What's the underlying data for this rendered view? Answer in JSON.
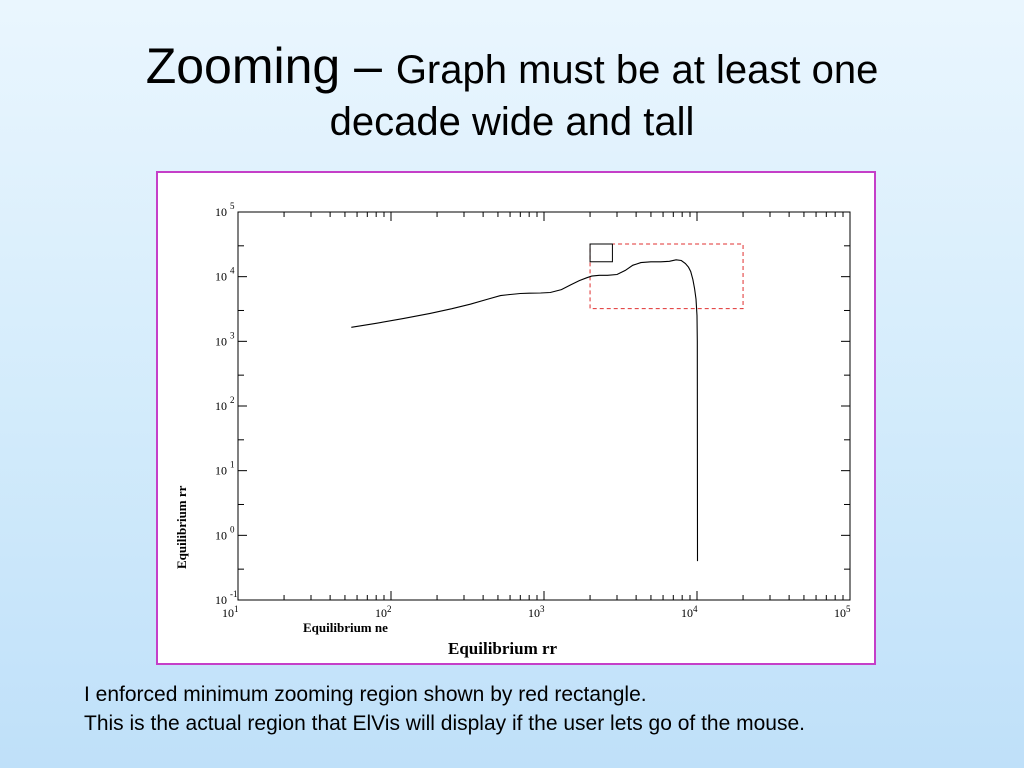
{
  "slide": {
    "title_main": "Zooming",
    "title_dash": " – ",
    "title_sub": "Graph must be at least one",
    "title_line2": "decade wide and tall"
  },
  "caption": {
    "line1": "I enforced minimum zooming region shown by red rectangle.",
    "line2": "This is the actual region that ElVis will display if the user lets go of the mouse."
  },
  "chart_data": {
    "type": "line",
    "xscale": "log",
    "yscale": "log",
    "xlim": [
      10,
      100000
    ],
    "ylim": [
      0.1,
      100000
    ],
    "x_tick_base": "10",
    "x_tick_exponents": [
      "1",
      "2",
      "3",
      "4",
      "5"
    ],
    "y_tick_base": "10",
    "y_tick_exponents": [
      "-1",
      "0",
      "1",
      "2",
      "3",
      "4",
      "5"
    ],
    "xlabel": "Equilibrium ne",
    "ylabel": "Equilibrium rr",
    "bottom_label": "Equilibrium rr",
    "grid": false,
    "series": [
      {
        "x": [
          55,
          80,
          120,
          180,
          250,
          330,
          430,
          520,
          600,
          650,
          700,
          800,
          950,
          1100,
          1300,
          1500,
          1700,
          1900,
          2050,
          2300,
          2600,
          3000,
          3400,
          3800,
          4300,
          5000,
          5800,
          6600,
          7300,
          7900,
          8400,
          8800,
          9100,
          9400,
          9650,
          9850,
          10000,
          10050,
          10080
        ],
        "y": [
          1650,
          1900,
          2250,
          2700,
          3200,
          3750,
          4500,
          5100,
          5300,
          5400,
          5500,
          5550,
          5600,
          5700,
          6300,
          7500,
          8700,
          9600,
          10200,
          10500,
          10500,
          10800,
          12500,
          15000,
          16500,
          17000,
          17000,
          17300,
          18200,
          17800,
          16000,
          14000,
          12000,
          9000,
          6500,
          4500,
          2500,
          1000,
          0.4
        ]
      }
    ],
    "zoom_rectangle_red": {
      "x": [
        2000,
        20000
      ],
      "y": [
        3200,
        32000
      ]
    },
    "selection_box_black": {
      "x": [
        2000,
        2800
      ],
      "y": [
        17000,
        32000
      ]
    },
    "colors": {
      "frame": "#c53fc8",
      "zoom_rect": "#e03030",
      "line": "#000000"
    }
  }
}
